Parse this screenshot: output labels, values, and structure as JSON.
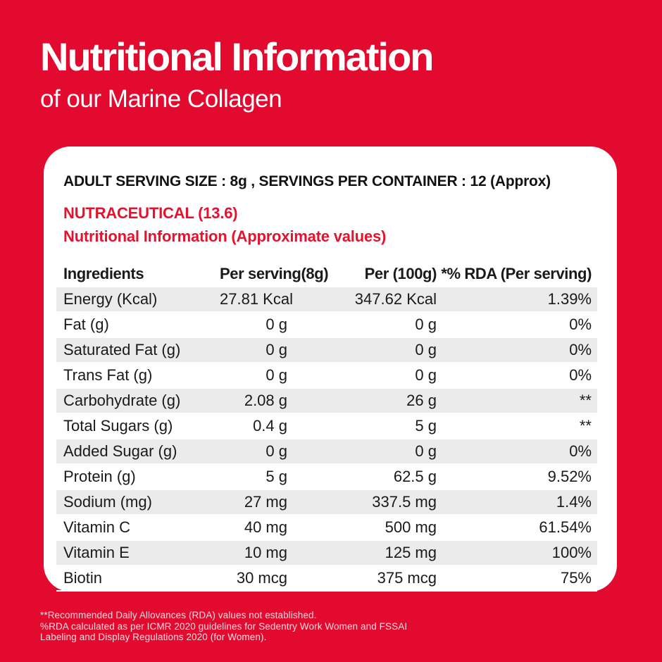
{
  "colors": {
    "background_red": "#E20A2E",
    "card_background": "#FFFFFF",
    "stripe_gray": "#EBEBEB",
    "accent_red": "#E8112D",
    "body_text": "#1A1A1A",
    "footnote_text": "#F8D5DB"
  },
  "header": {
    "title": "Nutritional Information",
    "subtitle": "of our Marine Collagen"
  },
  "card": {
    "serving_line": "ADULT SERVING SIZE : 8g , SERVINGS PER CONTAINER : 12 (Approx)",
    "category_line": "NUTRACEUTICAL (13.6)",
    "info_line": "Nutritional Information (Approximate values)"
  },
  "table": {
    "columns": [
      "Ingredients",
      "Per serving(8g)",
      "Per (100g)",
      "*% RDA (Per serving)"
    ],
    "rows": [
      [
        "Energy (Kcal)",
        "27.81 Kcal",
        "347.62 Kcal",
        "1.39%"
      ],
      [
        "Fat (g)",
        "0 g",
        "0 g",
        "0%"
      ],
      [
        "Saturated Fat (g)",
        "0 g",
        "0 g",
        "0%"
      ],
      [
        "Trans Fat (g)",
        "0 g",
        "0 g",
        "0%"
      ],
      [
        "Carbohydrate (g)",
        "2.08 g",
        "26 g",
        "**"
      ],
      [
        "Total Sugars (g)",
        "0.4 g",
        "5 g",
        "**"
      ],
      [
        "Added Sugar (g)",
        "0 g",
        "0 g",
        "0%"
      ],
      [
        "Protein (g)",
        "5 g",
        "62.5 g",
        "9.52%"
      ],
      [
        "Sodium (mg)",
        "27 mg",
        "337.5 mg",
        "1.4%"
      ],
      [
        "Vitamin C",
        "40 mg",
        "500 mg",
        "61.54%"
      ],
      [
        "Vitamin E",
        "10 mg",
        "125 mg",
        "100%"
      ],
      [
        "Biotin",
        "30 mcg",
        "375 mcg",
        "75%"
      ]
    ]
  },
  "footnotes": [
    "**Recommended Daily Allovances (RDA) values not established.",
    "%RDA calculated as per ICMR 2020 guidelines for Sedentry Work Women and FSSAI",
    "Labeling and Display Regulations 2020 (for Women)."
  ]
}
